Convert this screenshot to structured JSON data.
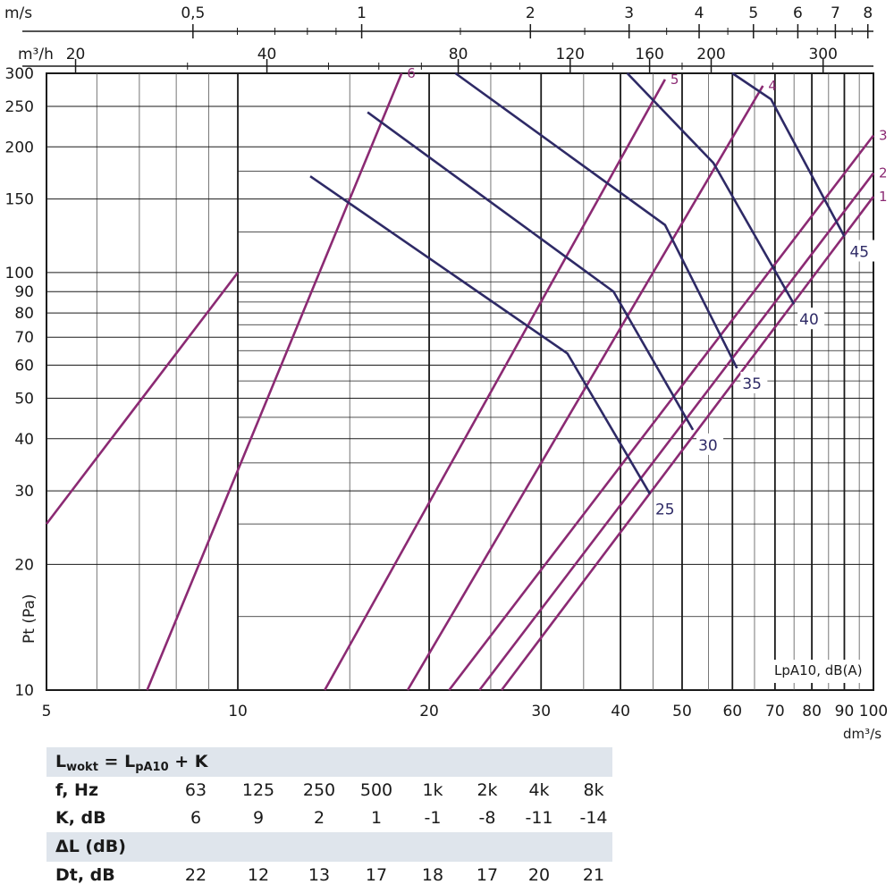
{
  "chart_data": {
    "type": "line",
    "x_axis": {
      "label": "dm³/s",
      "scale": "log",
      "range": [
        5,
        100
      ],
      "tick_labels": [
        "5",
        "10",
        "20",
        "30",
        "40",
        "50",
        "60",
        "70",
        "80",
        "90",
        "100"
      ]
    },
    "y_axis": {
      "label": "Pt (Pa)",
      "scale": "log",
      "range": [
        10,
        300
      ],
      "tick_labels": [
        "10",
        "20",
        "30",
        "40",
        "50",
        "60",
        "70",
        "80",
        "90",
        "100",
        "150",
        "200",
        "250",
        "300"
      ]
    },
    "top_axis_velocity": {
      "unit": "m/s",
      "tick_labels": [
        "0,5",
        "1",
        "2",
        "3",
        "4",
        "5",
        "6",
        "7",
        "8"
      ]
    },
    "top_axis_airflow": {
      "unit": "m³/h",
      "tick_labels": [
        "20",
        "40",
        "80",
        "120",
        "160",
        "200",
        "300"
      ]
    },
    "size_lines": [
      {
        "name": "1",
        "points": [
          [
            26,
            10
          ],
          [
            100,
            152
          ]
        ]
      },
      {
        "name": "2",
        "points": [
          [
            24,
            10
          ],
          [
            100,
            173
          ]
        ]
      },
      {
        "name": "3",
        "points": [
          [
            21.5,
            10
          ],
          [
            100,
            213
          ]
        ]
      },
      {
        "name": "4",
        "points": [
          [
            18.5,
            10
          ],
          [
            67,
            280
          ]
        ]
      },
      {
        "name": "5",
        "points": [
          [
            13.7,
            10
          ],
          [
            47,
            290
          ]
        ]
      },
      {
        "name": "6",
        "points": [
          [
            7.2,
            10
          ],
          [
            18.1,
            300
          ]
        ]
      },
      {
        "name": "",
        "points": [
          [
            5,
            25
          ],
          [
            10,
            100
          ]
        ]
      }
    ],
    "sound_lines": [
      {
        "name": "25",
        "points": [
          [
            13,
            170
          ],
          [
            33,
            64
          ],
          [
            44.5,
            29.5
          ]
        ]
      },
      {
        "name": "30",
        "points": [
          [
            16,
            242
          ],
          [
            39,
            90
          ],
          [
            52,
            42
          ]
        ]
      },
      {
        "name": "35",
        "points": [
          [
            22,
            300
          ],
          [
            47,
            130
          ],
          [
            61,
            59
          ]
        ]
      },
      {
        "name": "40",
        "points": [
          [
            41,
            300
          ],
          [
            56,
            183
          ],
          [
            75,
            84
          ]
        ]
      },
      {
        "name": "45",
        "points": [
          [
            60,
            300
          ],
          [
            69,
            260
          ],
          [
            90,
            122
          ]
        ]
      }
    ],
    "inset_label": "LpA10, dB(A)",
    "colors": {
      "size_lines": "#8b2a73",
      "sound_lines": "#2e2a66"
    }
  },
  "table": {
    "formula": {
      "main": "L",
      "sub1": "wokt",
      "eq": " = L",
      "sub2": "pA10",
      "tail": " + K"
    },
    "freq_row": {
      "label": "f, Hz",
      "values": [
        "63",
        "125",
        "250",
        "500",
        "1k",
        "2k",
        "4k",
        "8k"
      ]
    },
    "k_row": {
      "label": "K, dB",
      "values": [
        "6",
        "9",
        "2",
        "1",
        "-1",
        "-8",
        "-11",
        "-14"
      ]
    },
    "delta_header": "ΔL (dB)",
    "dt_row": {
      "label": "Dt, dB",
      "values": [
        "22",
        "12",
        "13",
        "17",
        "18",
        "17",
        "20",
        "21"
      ]
    }
  }
}
